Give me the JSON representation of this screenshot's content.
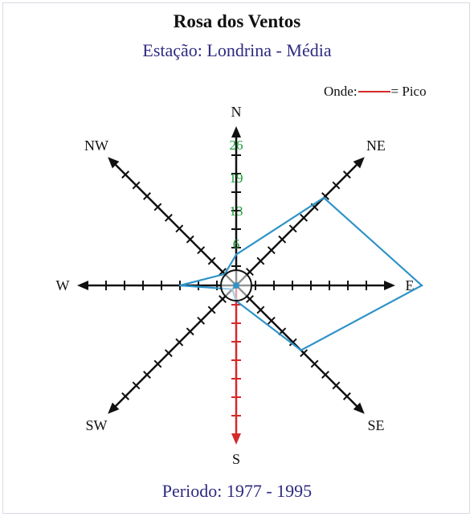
{
  "chart_data": {
    "type": "wind-rose",
    "title": "Rosa dos Ventos",
    "subtitle": "Estação: Londrina - Média",
    "footer": "Periodo: 1977 - 1995",
    "legend": {
      "prefix": "Onde:",
      "suffix": "= Pico",
      "peak_color": "#d42a2a"
    },
    "directions": [
      "N",
      "NE",
      "E",
      "SE",
      "S",
      "SW",
      "W",
      "NW"
    ],
    "scale_labels": [
      "6",
      "13",
      "19",
      "26"
    ],
    "peak_direction": "S",
    "series": [
      {
        "values": [
          6,
          23,
          33,
          17,
          3,
          1,
          10,
          3
        ]
      }
    ],
    "colors": {
      "axis": "#111111",
      "peak": "#d42a2a",
      "polygon": "#2f93c8",
      "scale_label": "#1f9a3a"
    }
  }
}
